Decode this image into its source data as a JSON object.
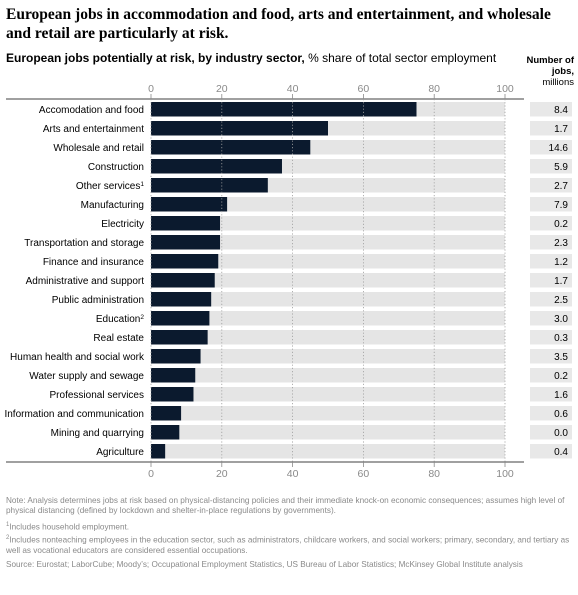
{
  "title": "European jobs in accommodation and food, arts and entertainment, and wholesale and retail are particularly at risk.",
  "subtitle": {
    "bold": "European jobs potentially at risk, by industry sector,",
    "rest": " % share of total sector employment"
  },
  "jobs_column": {
    "header_bold": "Number of jobs,",
    "header_units": "millions"
  },
  "colors": {
    "bar": "#0b1a2e",
    "track": "#e5e5e5",
    "jobs_box": "#e8e8e8",
    "grid": "#9e9e9e"
  },
  "chart_data": {
    "type": "bar",
    "orientation": "horizontal",
    "xlim": [
      0,
      100
    ],
    "xticks": [
      "0",
      "20",
      "40",
      "60",
      "80",
      "100"
    ],
    "grid": true,
    "categories": [
      {
        "label": "Accomodation and food",
        "sup": "",
        "value": 75,
        "jobs": "8.4"
      },
      {
        "label": "Arts and entertainment",
        "sup": "",
        "value": 50,
        "jobs": "1.7"
      },
      {
        "label": "Wholesale and retail",
        "sup": "",
        "value": 45,
        "jobs": "14.6"
      },
      {
        "label": "Construction",
        "sup": "",
        "value": 37,
        "jobs": "5.9"
      },
      {
        "label": "Other services",
        "sup": "1",
        "value": 33,
        "jobs": "2.7"
      },
      {
        "label": "Manufacturing",
        "sup": "",
        "value": 21.5,
        "jobs": "7.9"
      },
      {
        "label": "Electricity",
        "sup": "",
        "value": 19.5,
        "jobs": "0.2"
      },
      {
        "label": "Transportation and storage",
        "sup": "",
        "value": 19.5,
        "jobs": "2.3"
      },
      {
        "label": "Finance and insurance",
        "sup": "",
        "value": 19,
        "jobs": "1.2"
      },
      {
        "label": "Administrative and support",
        "sup": "",
        "value": 18,
        "jobs": "1.7"
      },
      {
        "label": "Public administration",
        "sup": "",
        "value": 17,
        "jobs": "2.5"
      },
      {
        "label": "Education",
        "sup": "2",
        "value": 16.5,
        "jobs": "3.0"
      },
      {
        "label": "Real estate",
        "sup": "",
        "value": 16,
        "jobs": "0.3"
      },
      {
        "label": "Human health and social work",
        "sup": "",
        "value": 14,
        "jobs": "3.5"
      },
      {
        "label": "Water supply and sewage",
        "sup": "",
        "value": 12.5,
        "jobs": "0.2"
      },
      {
        "label": "Professional services",
        "sup": "",
        "value": 12,
        "jobs": "1.6"
      },
      {
        "label": "Information and communication",
        "sup": "",
        "value": 8.5,
        "jobs": "0.6"
      },
      {
        "label": "Mining and quarrying",
        "sup": "",
        "value": 8,
        "jobs": "0.0"
      },
      {
        "label": "Agriculture",
        "sup": "",
        "value": 4,
        "jobs": "0.4"
      }
    ]
  },
  "notes": {
    "note": "Note: Analysis determines jobs at risk based on physical-distancing policies and their immediate knock-on economic consequences; assumes high level of physical distancing (defined by lockdown and shelter-in-place regulations by governments).",
    "footnote1_mark": "1",
    "footnote1": "Includes household employment.",
    "footnote2_mark": "2",
    "footnote2": "Includes nonteaching employees in the education sector, such as administrators, childcare workers, and social workers; primary, secondary, and tertiary as well as vocational educators are considered essential occupations.",
    "source": "Source: Eurostat; LaborCube; Moody’s; Occupational Employment Statistics, US Bureau of Labor Statistics; McKinsey Global Institute analysis"
  }
}
